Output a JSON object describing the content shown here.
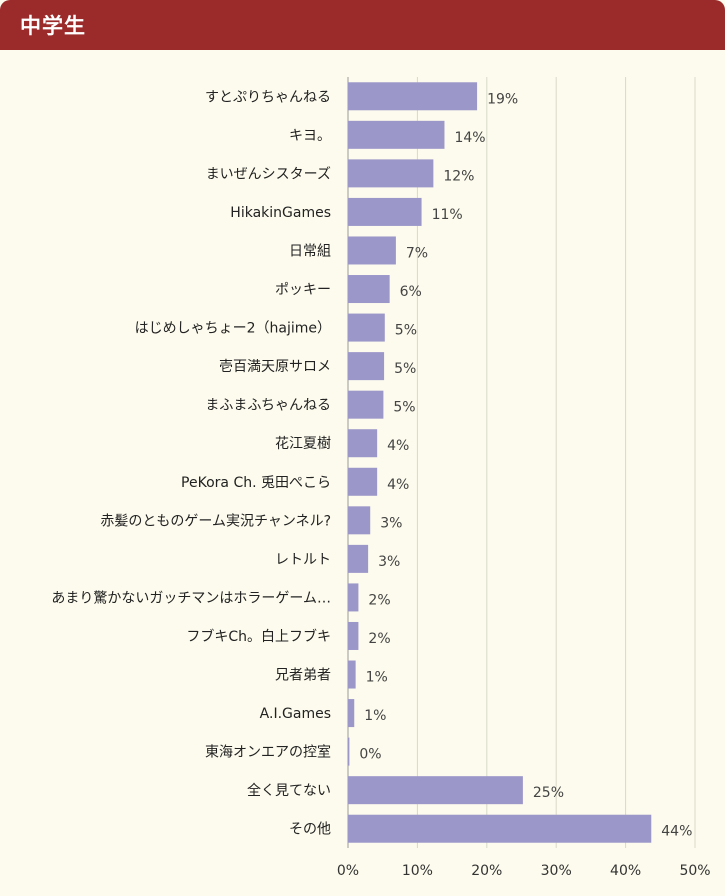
{
  "header": {
    "title": "中学生"
  },
  "chart_data": {
    "type": "bar",
    "orientation": "horizontal",
    "categories": [
      "すとぷりちゃんねる",
      "キヨ。",
      "まいぜんシスターズ",
      "HikakinGames",
      "日常組",
      "ポッキー",
      "はじめしゃちょー2（hajime）",
      "壱百満天原サロメ",
      "まふまふちゃんねる",
      "花江夏樹",
      "PeKora Ch. 兎田ぺこら",
      "赤髪のとものゲーム実況チャンネル?",
      "レトルト",
      "あまり驚かないガッチマンはホラーゲーム…",
      "フブキCh。白上フブキ",
      "兄者弟者",
      "A.I.Games",
      "東海オンエアの控室",
      "全く見てない",
      "その他"
    ],
    "values": [
      18.6,
      13.9,
      12.3,
      10.6,
      6.9,
      6.0,
      5.3,
      5.2,
      5.1,
      4.2,
      4.2,
      3.2,
      2.9,
      1.5,
      1.5,
      1.1,
      0.9,
      0.2,
      25.2,
      43.7
    ],
    "value_labels": [
      "19%",
      "14%",
      "12%",
      "11%",
      "7%",
      "6%",
      "5%",
      "5%",
      "5%",
      "4%",
      "4%",
      "3%",
      "3%",
      "2%",
      "2%",
      "1%",
      "1%",
      "0%",
      "25%",
      "44%"
    ],
    "xlim": [
      0,
      50
    ],
    "xticks": [
      "0%",
      "10%",
      "20%",
      "30%",
      "40%",
      "50%"
    ],
    "grid": true,
    "bar_color": "#9b97c9",
    "title": "",
    "xlabel": "",
    "ylabel": ""
  }
}
